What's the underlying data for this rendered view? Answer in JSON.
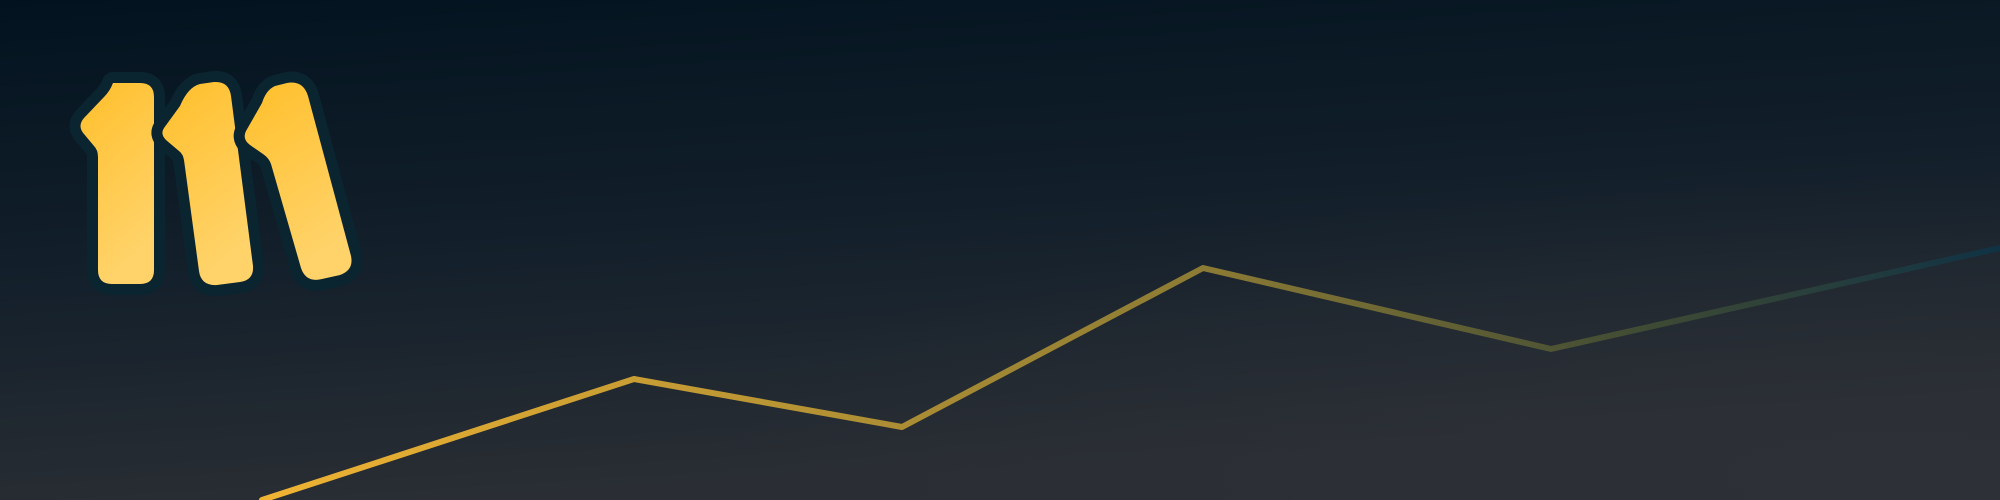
{
  "banner": {
    "logo_icon": "three-slanted-bars-logo-icon",
    "trend_icon": "trend-line-icon"
  },
  "colors": {
    "background_top": "#02131f",
    "background_bottom": "#2a2e34",
    "logo_fill_top": "#ffbf2b",
    "logo_fill_bottom": "#ffd36a",
    "logo_outline": "#0b2530",
    "line_start": "#f0b433",
    "line_end": "#103244"
  }
}
